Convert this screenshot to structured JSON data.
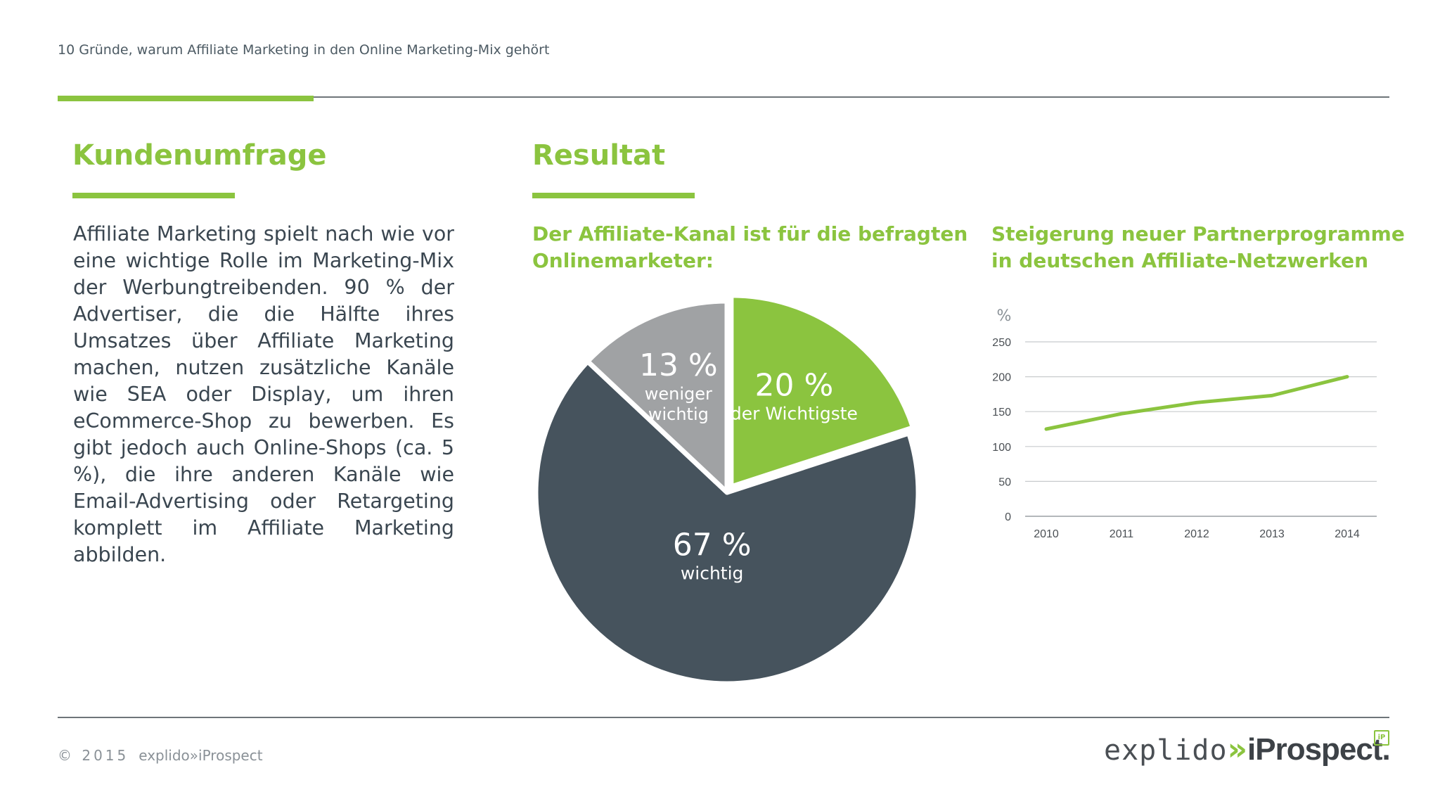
{
  "header": {
    "title": "10 Gründe, warum Affiliate Marketing in den Online Marketing-Mix gehört"
  },
  "left": {
    "title": "Kundenumfrage",
    "body": "Affiliate Marketing spielt nach wie vor eine wichtige Rolle im Marketing-Mix der Werbungtreibenden. 90 % der Advertiser, die die Hälfte ihres Umsatzes über Affi­liate Marketing machen, nutzen zusätz­liche Kanäle wie SEA oder Display, um ihren eCommerce-Shop zu bewerben. Es gibt jedoch auch Online-Shops (ca. 5 %), die ihre anderen Kanäle wie Email-Advertising oder Retargeting komplett im Affiliate Marketing abbilden."
  },
  "middle": {
    "title": "Resultat"
  },
  "colors": {
    "accent": "#8bc43f",
    "pie_dark": "#46535d",
    "pie_gray": "#a0a2a4",
    "text": "#3a4650"
  },
  "chart_data": [
    {
      "type": "pie",
      "title": "Der  Affiliate-Kanal ist für die befragten Onlinemarketer:",
      "slices": [
        {
          "label": "der Wichtigste",
          "value": 20,
          "value_label": "20 %",
          "color": "#8bc43f"
        },
        {
          "label": "wichtig",
          "value": 67,
          "value_label": "67 %",
          "color": "#46535d"
        },
        {
          "label": "weniger wichtig",
          "value": 13,
          "value_label": "13 %",
          "color": "#a0a2a4"
        }
      ]
    },
    {
      "type": "line",
      "title": "Steigerung neuer Partnerprogramme in deutschen Affiliate-Netzwerken",
      "ylabel": "%",
      "xlabel": "",
      "x": [
        "2010",
        "2011",
        "2012",
        "2013",
        "2014"
      ],
      "series": [
        {
          "values": [
            125,
            147,
            163,
            173,
            200
          ],
          "color": "#8bc43f"
        }
      ],
      "ylim": [
        0,
        250
      ],
      "yticks": [
        0,
        50,
        100,
        150,
        200,
        250
      ],
      "grid": true
    }
  ],
  "footer": {
    "year": "© 2015",
    "company": "explido»iProspect"
  },
  "logo": {
    "explido": "explido",
    "sep": "»",
    "iprospect": "iProspect.",
    "mark": "iP"
  }
}
